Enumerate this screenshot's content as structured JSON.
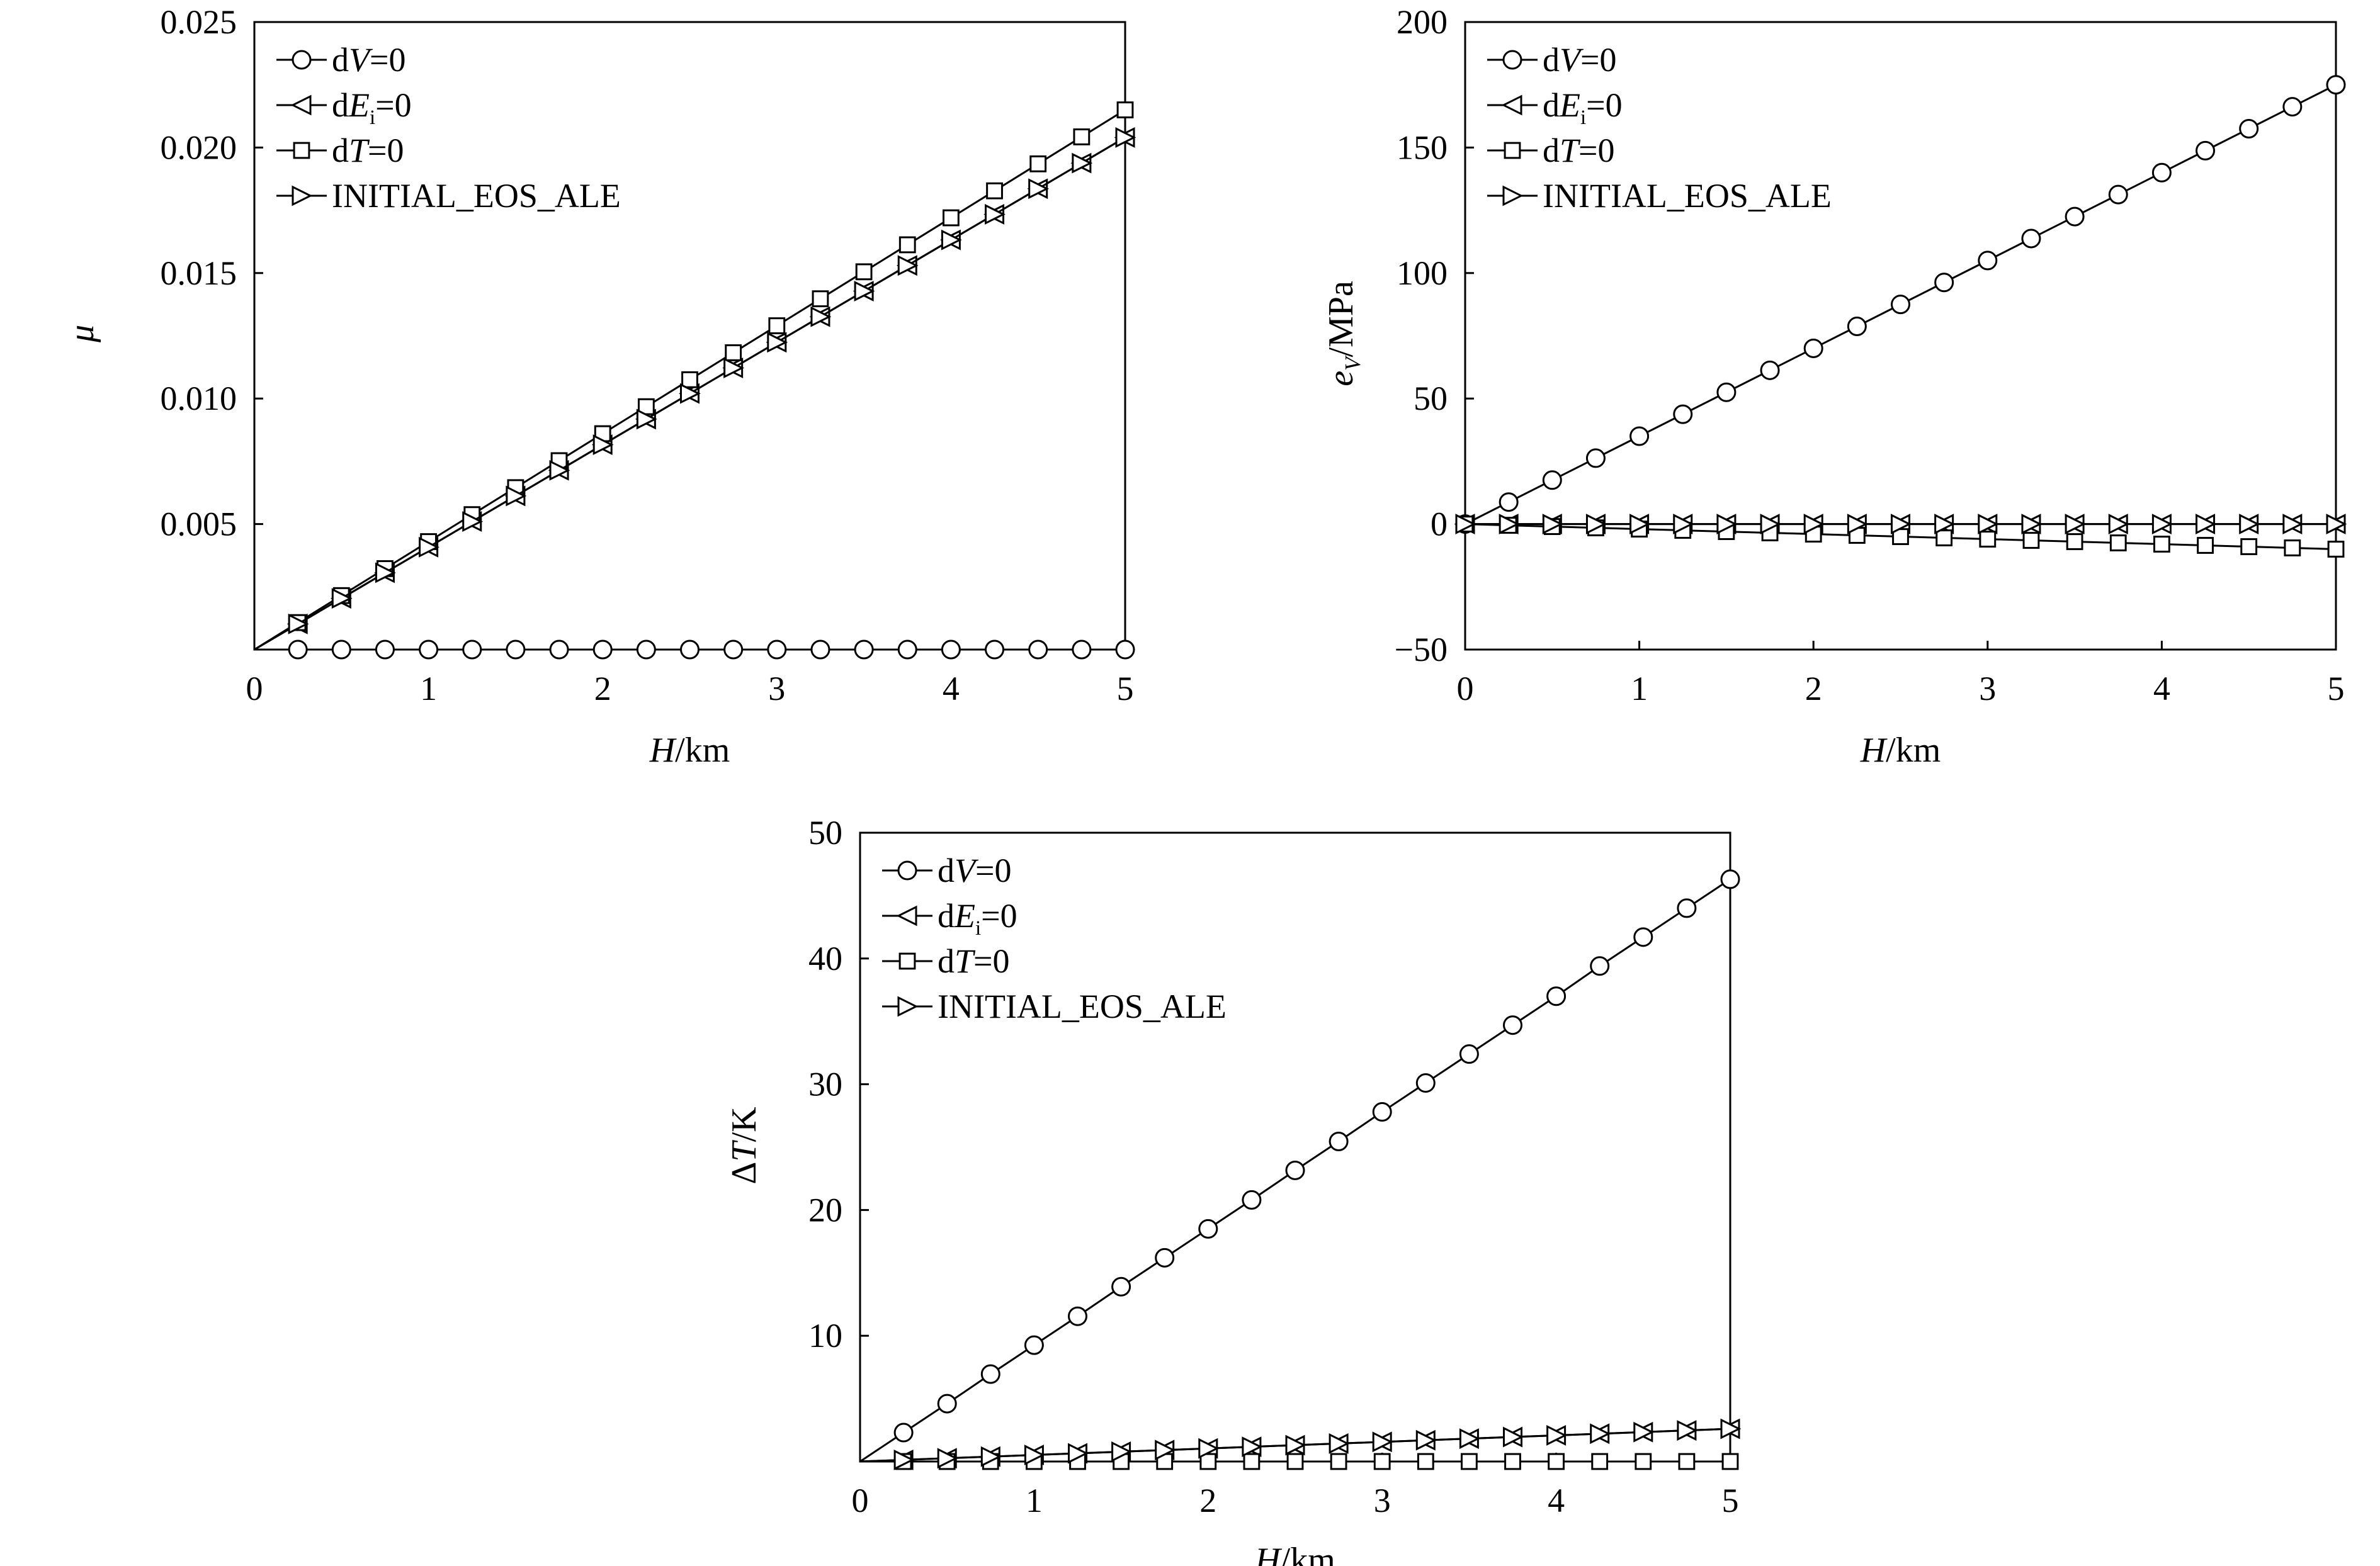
{
  "chart_data": [
    {
      "id": "mu",
      "type": "line",
      "title": "",
      "xlabel": "H/km",
      "ylabel": "μ",
      "xlim": [
        0,
        5
      ],
      "ylim": [
        0,
        0.025
      ],
      "xticks": [
        "0",
        "1",
        "2",
        "3",
        "4",
        "5"
      ],
      "yticks": [
        "0.005",
        "0.010",
        "0.015",
        "0.020",
        "0.025"
      ],
      "ytick_values": [
        0.005,
        0.01,
        0.015,
        0.02,
        0.025
      ],
      "grid": false,
      "legend_position": "top-left",
      "x": [
        0.25,
        0.5,
        0.75,
        1.0,
        1.25,
        1.5,
        1.75,
        2.0,
        2.25,
        2.5,
        2.75,
        3.0,
        3.25,
        3.5,
        3.75,
        4.0,
        4.25,
        4.5,
        4.75,
        5.0
      ],
      "series": [
        {
          "name": "dV=0",
          "marker": "circle",
          "values": [
            0,
            0,
            0,
            0,
            0,
            0,
            0,
            0,
            0,
            0,
            0,
            0,
            0,
            0,
            0,
            0,
            0,
            0,
            0,
            0
          ]
        },
        {
          "name": "dEi=0",
          "marker": "triangle-left",
          "values": [
            0.00102,
            0.00204,
            0.00306,
            0.00408,
            0.0051,
            0.00612,
            0.00714,
            0.00816,
            0.00918,
            0.0102,
            0.01122,
            0.01224,
            0.01326,
            0.01428,
            0.0153,
            0.01632,
            0.01734,
            0.01836,
            0.01938,
            0.0204
          ]
        },
        {
          "name": "dT=0",
          "marker": "square",
          "values": [
            0.001075,
            0.00215,
            0.003225,
            0.0043,
            0.005375,
            0.00645,
            0.007525,
            0.0086,
            0.009675,
            0.01075,
            0.011825,
            0.0129,
            0.013975,
            0.01505,
            0.016125,
            0.0172,
            0.018275,
            0.01935,
            0.020425,
            0.0215
          ]
        },
        {
          "name": "INITIAL_EOS_ALE",
          "marker": "triangle-right",
          "values": [
            0.00102,
            0.00204,
            0.00306,
            0.00408,
            0.0051,
            0.00612,
            0.00714,
            0.00816,
            0.00918,
            0.0102,
            0.01122,
            0.01224,
            0.01326,
            0.01428,
            0.0153,
            0.01632,
            0.01734,
            0.01836,
            0.01938,
            0.0204
          ]
        }
      ]
    },
    {
      "id": "ev",
      "type": "line",
      "title": "",
      "xlabel": "H/km",
      "ylabel": "eV/MPa",
      "xlim": [
        0,
        5
      ],
      "ylim": [
        -50,
        200
      ],
      "xticks": [
        "0",
        "1",
        "2",
        "3",
        "4",
        "5"
      ],
      "yticks": [
        "−50",
        "0",
        "50",
        "100",
        "150",
        "200"
      ],
      "ytick_values": [
        -50,
        0,
        50,
        100,
        150,
        200
      ],
      "grid": false,
      "legend_position": "top-left",
      "x": [
        0,
        0.25,
        0.5,
        0.75,
        1.0,
        1.25,
        1.5,
        1.75,
        2.0,
        2.25,
        2.5,
        2.75,
        3.0,
        3.25,
        3.5,
        3.75,
        4.0,
        4.25,
        4.5,
        4.75,
        5.0
      ],
      "series": [
        {
          "name": "dV=0",
          "marker": "circle",
          "values": [
            0,
            8.75,
            17.5,
            26.25,
            35,
            43.75,
            52.5,
            61.25,
            70,
            78.75,
            87.5,
            96.25,
            105,
            113.75,
            122.5,
            131.25,
            140,
            148.75,
            157.5,
            166.25,
            175
          ]
        },
        {
          "name": "dEi=0",
          "marker": "triangle-left",
          "values": [
            0,
            0,
            0,
            0,
            0,
            0,
            0,
            0,
            0,
            0,
            0,
            0,
            0,
            0,
            0,
            0,
            0,
            0,
            0,
            0,
            0
          ]
        },
        {
          "name": "dT=0",
          "marker": "square",
          "values": [
            0,
            -0.5,
            -1,
            -1.5,
            -2,
            -2.5,
            -3,
            -3.5,
            -4,
            -4.5,
            -5,
            -5.5,
            -6,
            -6.5,
            -7,
            -7.5,
            -8,
            -8.5,
            -9,
            -9.5,
            -10
          ]
        },
        {
          "name": "INITIAL_EOS_ALE",
          "marker": "triangle-right",
          "values": [
            0,
            0,
            0,
            0,
            0,
            0,
            0,
            0,
            0,
            0,
            0,
            0,
            0,
            0,
            0,
            0,
            0,
            0,
            0,
            0,
            0
          ]
        }
      ]
    },
    {
      "id": "dt",
      "type": "line",
      "title": "",
      "xlabel": "H/km",
      "ylabel": "ΔT/K",
      "xlim": [
        0,
        5
      ],
      "ylim": [
        0,
        50
      ],
      "xticks": [
        "0",
        "1",
        "2",
        "3",
        "4",
        "5"
      ],
      "yticks": [
        "10",
        "20",
        "30",
        "40",
        "50"
      ],
      "ytick_values": [
        10,
        20,
        30,
        40,
        50
      ],
      "grid": false,
      "legend_position": "top-left",
      "x": [
        0.25,
        0.5,
        0.75,
        1.0,
        1.25,
        1.5,
        1.75,
        2.0,
        2.25,
        2.5,
        2.75,
        3.0,
        3.25,
        3.5,
        3.75,
        4.0,
        4.25,
        4.5,
        4.75,
        5.0
      ],
      "series": [
        {
          "name": "dV=0",
          "marker": "circle",
          "values": [
            2.3,
            4.6,
            6.95,
            9.25,
            11.55,
            13.9,
            16.2,
            18.5,
            20.8,
            23.15,
            25.45,
            27.8,
            30.1,
            32.4,
            34.7,
            37.0,
            39.4,
            41.7,
            44.0,
            46.3
          ]
        },
        {
          "name": "dEi=0",
          "marker": "triangle-left",
          "values": [
            0.13,
            0.26,
            0.39,
            0.52,
            0.65,
            0.78,
            0.91,
            1.04,
            1.17,
            1.3,
            1.43,
            1.56,
            1.69,
            1.82,
            1.95,
            2.08,
            2.21,
            2.34,
            2.47,
            2.6
          ]
        },
        {
          "name": "dT=0",
          "marker": "square",
          "values": [
            0,
            0,
            0,
            0,
            0,
            0,
            0,
            0,
            0,
            0,
            0,
            0,
            0,
            0,
            0,
            0,
            0,
            0,
            0,
            0
          ]
        },
        {
          "name": "INITIAL_EOS_ALE",
          "marker": "triangle-right",
          "values": [
            0.13,
            0.26,
            0.39,
            0.52,
            0.65,
            0.78,
            0.91,
            1.04,
            1.17,
            1.3,
            1.43,
            1.56,
            1.69,
            1.82,
            1.95,
            2.08,
            2.21,
            2.34,
            2.47,
            2.6
          ]
        }
      ]
    }
  ]
}
